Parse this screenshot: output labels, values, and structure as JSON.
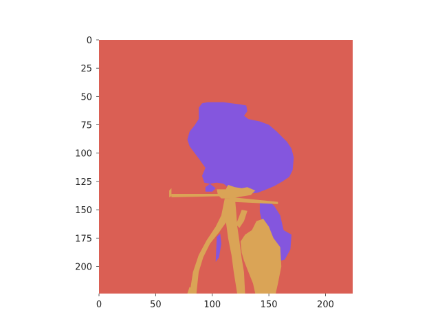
{
  "colors": {
    "background_class": "#DA5F54",
    "rider_class": "#8456DE",
    "bicycle_class": "#DAA456",
    "figure_bg": "#ffffff"
  },
  "chart_data": {
    "type": "heatmap",
    "title": "",
    "xlabel": "",
    "ylabel": "",
    "image_size": [
      224,
      224
    ],
    "xlim": [
      0,
      224
    ],
    "ylim": [
      224,
      0
    ],
    "x_ticks": [
      {
        "value": 0,
        "label": "0"
      },
      {
        "value": 50,
        "label": "50"
      },
      {
        "value": 100,
        "label": "100"
      },
      {
        "value": 150,
        "label": "150"
      },
      {
        "value": 200,
        "label": "200"
      }
    ],
    "y_ticks": [
      {
        "value": 0,
        "label": "0"
      },
      {
        "value": 25,
        "label": "25"
      },
      {
        "value": 50,
        "label": "50"
      },
      {
        "value": 75,
        "label": "75"
      },
      {
        "value": 100,
        "label": "100"
      },
      {
        "value": 125,
        "label": "125"
      },
      {
        "value": 150,
        "label": "150"
      },
      {
        "value": 175,
        "label": "175"
      },
      {
        "value": 200,
        "label": "200"
      }
    ],
    "grid": false,
    "segments": [
      {
        "class": "rider",
        "color": "#8456DE",
        "polygons": [
          [
            [
              88,
              60
            ],
            [
              91,
              56
            ],
            [
              96,
              55
            ],
            [
              103,
              55
            ],
            [
              110,
              55
            ],
            [
              117,
              56
            ],
            [
              125,
              57
            ],
            [
              130,
              58
            ],
            [
              131,
              63
            ],
            [
              128,
              67
            ],
            [
              132,
              70
            ],
            [
              142,
              72
            ],
            [
              150,
              75
            ],
            [
              157,
              81
            ],
            [
              162,
              86
            ],
            [
              166,
              90
            ],
            [
              170,
              96
            ],
            [
              172,
              104
            ],
            [
              171,
              115
            ],
            [
              168,
              121
            ],
            [
              162,
              125
            ],
            [
              155,
              129
            ],
            [
              148,
              132
            ],
            [
              140,
              135
            ],
            [
              131,
              136
            ],
            [
              122,
              135
            ],
            [
              115,
              131
            ],
            [
              110,
              127
            ],
            [
              104,
              126
            ],
            [
              98,
              127
            ],
            [
              93,
              126
            ],
            [
              91,
              120
            ],
            [
              94,
              113
            ],
            [
              89,
              106
            ],
            [
              83,
              98
            ],
            [
              80,
              94
            ],
            [
              78,
              88
            ],
            [
              80,
              81
            ],
            [
              84,
              76
            ],
            [
              88,
              70
            ]
          ],
          [
            [
              94,
              130
            ],
            [
              98,
              127
            ],
            [
              103,
              131
            ],
            [
              100,
              134
            ],
            [
              94,
              134
            ]
          ],
          [
            [
              142,
              143
            ],
            [
              150,
              142
            ],
            [
              155,
              147
            ],
            [
              160,
              155
            ],
            [
              163,
              168
            ],
            [
              170,
              172
            ],
            [
              169,
              185
            ],
            [
              164,
              194
            ],
            [
              156,
              196
            ],
            [
              150,
              192
            ],
            [
              149,
              180
            ],
            [
              145,
              165
            ],
            [
              142,
              152
            ]
          ],
          [
            [
              104,
              174
            ],
            [
              107,
              171
            ],
            [
              108,
              180
            ],
            [
              106,
              192
            ],
            [
              103,
              196
            ]
          ]
        ]
      },
      {
        "class": "bicycle",
        "color": "#DAA456",
        "polygons": [
          [
            [
              62,
              133
            ],
            [
              64,
              131
            ],
            [
              64,
              138
            ],
            [
              62,
              139
            ]
          ],
          [
            [
              64,
              136
            ],
            [
              110,
              136
            ],
            [
              111,
              138
            ],
            [
              64,
              139
            ]
          ],
          [
            [
              104,
              132
            ],
            [
              112,
              132
            ],
            [
              114,
              128
            ],
            [
              120,
              130
            ],
            [
              126,
              131
            ],
            [
              131,
              130
            ],
            [
              138,
              133
            ],
            [
              134,
              137
            ],
            [
              128,
              138
            ],
            [
              122,
              139
            ],
            [
              116,
              140
            ],
            [
              108,
              140
            ],
            [
              105,
              137
            ]
          ],
          [
            [
              115,
              140
            ],
            [
              120,
              139
            ],
            [
              121,
              150
            ],
            [
              122,
              164
            ],
            [
              124,
              178
            ],
            [
              126,
              193
            ],
            [
              128,
              205
            ],
            [
              129,
              224
            ],
            [
              122,
              224
            ],
            [
              119,
              205
            ],
            [
              117,
              190
            ],
            [
              114,
              175
            ],
            [
              112,
              160
            ],
            [
              112,
              150
            ]
          ],
          [
            [
              118,
              139
            ],
            [
              158,
              143
            ],
            [
              158,
              145
            ],
            [
              118,
              143
            ]
          ],
          [
            [
              111,
              140
            ],
            [
              115,
              140
            ],
            [
              113,
              160
            ],
            [
              106,
              170
            ],
            [
              98,
              180
            ],
            [
              92,
              192
            ],
            [
              88,
              205
            ],
            [
              86,
              224
            ],
            [
              80,
              224
            ],
            [
              83,
              205
            ],
            [
              88,
              190
            ],
            [
              95,
              177
            ],
            [
              103,
              165
            ],
            [
              108,
              155
            ]
          ],
          [
            [
              126,
              150
            ],
            [
              131,
              151
            ],
            [
              128,
              160
            ],
            [
              124,
              166
            ],
            [
              121,
              163
            ]
          ],
          [
            [
              125,
              178
            ],
            [
              129,
              172
            ],
            [
              135,
              168
            ],
            [
              139,
              160
            ],
            [
              145,
              158
            ],
            [
              150,
              165
            ],
            [
              154,
              175
            ],
            [
              160,
              183
            ],
            [
              161,
              200
            ],
            [
              158,
              215
            ],
            [
              156,
              224
            ],
            [
              138,
              224
            ],
            [
              136,
              215
            ],
            [
              132,
              205
            ],
            [
              128,
              195
            ],
            [
              126,
              188
            ]
          ],
          [
            [
              80,
              218
            ],
            [
              82,
              220
            ],
            [
              84,
              224
            ],
            [
              78,
              224
            ]
          ]
        ]
      }
    ]
  }
}
